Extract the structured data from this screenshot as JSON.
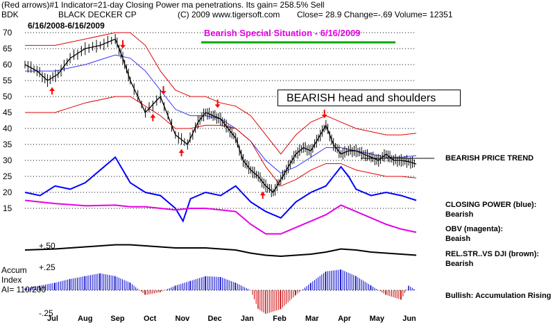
{
  "header": {
    "line1": "(Red arrows)#1 Indicator=21-day Closing Power ma penetrations. Its gain= 258.5% Sell",
    "ticker": "BDK",
    "company": "BLACK DECKER CP",
    "copyright": "(C) 2009 www.tigersoft.com",
    "close": "Close=  28.9  Change=-.69 Volume= 12351",
    "date_range": "6/16/2008-6/16/2009"
  },
  "annotations": {
    "special": "Bearish Special Situation - 6/16/2009",
    "head_shoulders": "BEARISH head and shoulders",
    "trend": "BEARISH PRICE TREND",
    "cp_title": "CLOSING POWER (blue):",
    "cp_value": "Bearish",
    "obv_title": "OBV (magenta):",
    "obv_value": "Beaish",
    "rs_title": "REL.STR..VS DJI (brown):",
    "rs_value": "Bearish",
    "accum_note": "Bullish: Accumulation Rising",
    "accum_l1": "Accum",
    "accum_l2": "Index",
    "accum_l3": "AI= 110/200"
  },
  "colors": {
    "price": "#000000",
    "bands": "#e00000",
    "closing_power": "#0000ff",
    "obv": "#e600e6",
    "rel_strength": "#000000",
    "accum_pos": "#0000cc",
    "accum_neg": "#cc0000",
    "special_underline": "#00aa00",
    "arrow": "#ff0000"
  },
  "chart_data": {
    "type": "line",
    "months": [
      "Jul",
      "Aug",
      "Sep",
      "Oct",
      "Nov",
      "Dec",
      "Jan",
      "Feb",
      "Mar",
      "Apr",
      "May",
      "Jun"
    ],
    "price_axis": {
      "ticks": [
        70,
        65,
        60,
        55,
        50,
        45,
        40,
        35,
        30,
        25,
        20,
        15
      ],
      "ylim": [
        12,
        72
      ]
    },
    "rs_scale_label": "+.50",
    "accum_axis": {
      "top_label": "+.25",
      "bottom_label": "-.25",
      "ylim": [
        -0.25,
        0.25
      ]
    },
    "x_range": [
      0,
      260
    ],
    "price_close": {
      "x": [
        0,
        8,
        15,
        22,
        30,
        40,
        50,
        60,
        65,
        70,
        80,
        90,
        100,
        108,
        115,
        120,
        125,
        130,
        135,
        140,
        145,
        150,
        155,
        160,
        165,
        170,
        175,
        180,
        185,
        190,
        195,
        200,
        205,
        210,
        215,
        220,
        225,
        230,
        235,
        240,
        245,
        250,
        255,
        260
      ],
      "y": [
        60,
        58,
        55,
        57,
        62,
        65,
        66,
        68,
        62,
        55,
        45,
        50,
        38,
        35,
        42,
        45,
        44,
        43,
        40,
        37,
        30,
        27,
        25,
        22,
        20,
        24,
        28,
        32,
        34,
        33,
        37,
        41,
        35,
        32,
        33,
        33,
        32,
        31,
        30,
        32,
        30,
        30,
        29.6,
        28.9
      ]
    },
    "upper_band": {
      "x": [
        0,
        20,
        40,
        60,
        70,
        80,
        90,
        100,
        110,
        120,
        130,
        140,
        150,
        160,
        170,
        180,
        190,
        200,
        210,
        220,
        230,
        240,
        250,
        260
      ],
      "y": [
        66,
        66,
        68,
        70,
        70,
        66,
        58,
        52,
        50,
        50,
        48,
        47,
        44,
        38,
        32,
        38,
        42,
        44,
        42,
        40,
        39,
        38,
        38,
        38.5
      ]
    },
    "middle_ma": {
      "x": [
        0,
        20,
        40,
        60,
        70,
        80,
        90,
        100,
        110,
        120,
        130,
        140,
        150,
        160,
        170,
        180,
        190,
        200,
        210,
        220,
        230,
        240,
        250,
        260
      ],
      "y": [
        58,
        58,
        60,
        63,
        62,
        58,
        52,
        46,
        44,
        44,
        43,
        40,
        36,
        30,
        26,
        28,
        31,
        34,
        34,
        33,
        32,
        31,
        31,
        31.5
      ]
    },
    "lower_band": {
      "x": [
        0,
        20,
        40,
        60,
        70,
        80,
        90,
        100,
        110,
        120,
        130,
        140,
        150,
        160,
        170,
        180,
        190,
        200,
        210,
        220,
        230,
        240,
        250,
        260
      ],
      "y": [
        45,
        45,
        48,
        50,
        50,
        47,
        44,
        40,
        40,
        41,
        41,
        40,
        36,
        28,
        22,
        24,
        27,
        29,
        29,
        27,
        26,
        25,
        25,
        24.5
      ]
    },
    "series": [
      {
        "name": "CLOSING POWER (blue):",
        "x": [
          0,
          10,
          20,
          30,
          40,
          50,
          60,
          65,
          70,
          80,
          90,
          100,
          105,
          110,
          120,
          130,
          140,
          150,
          160,
          170,
          180,
          190,
          200,
          210,
          215,
          220,
          230,
          240,
          250,
          260
        ],
        "y": [
          20,
          19,
          22,
          21,
          23,
          27,
          31,
          27,
          23,
          20,
          19,
          15,
          11,
          18,
          20,
          19,
          22,
          17,
          14,
          12,
          17,
          20,
          22,
          28,
          25,
          21,
          19,
          20,
          19,
          17.5
        ]
      },
      {
        "name": "OBV (magenta):",
        "x": [
          0,
          20,
          40,
          60,
          70,
          80,
          90,
          100,
          110,
          120,
          130,
          140,
          150,
          160,
          170,
          180,
          190,
          200,
          210,
          220,
          230,
          240,
          250,
          260
        ],
        "y": [
          17.5,
          16.5,
          15.8,
          16,
          15.5,
          15.5,
          15,
          14.5,
          15,
          15,
          14.5,
          14,
          10,
          7,
          7,
          9,
          11,
          13,
          16,
          14,
          12,
          10,
          8.5,
          7.5
        ]
      },
      {
        "name": "REL.STR..VS DJI (brown):",
        "x": [
          0,
          20,
          40,
          60,
          70,
          80,
          90,
          100,
          110,
          120,
          130,
          140,
          150,
          160,
          170,
          180,
          190,
          200,
          210,
          220,
          230,
          240,
          250,
          260
        ],
        "y": [
          4,
          4.5,
          5.5,
          6.5,
          6.5,
          6,
          5.5,
          5,
          5,
          5,
          4.5,
          4,
          2.5,
          1.5,
          1,
          1.5,
          2,
          3,
          4.5,
          4,
          3,
          2.5,
          2,
          1.5
        ]
      }
    ],
    "accum_index": {
      "x": [
        0,
        10,
        20,
        30,
        40,
        50,
        60,
        70,
        80,
        90,
        100,
        110,
        120,
        130,
        140,
        150,
        155,
        160,
        170,
        180,
        190,
        200,
        210,
        220,
        230,
        240,
        250,
        255,
        260
      ],
      "y": [
        0.02,
        0.05,
        0.08,
        0.12,
        0.15,
        0.18,
        0.15,
        0.08,
        -0.05,
        -0.02,
        0.05,
        0.1,
        0.15,
        0.14,
        0.08,
        0.0,
        -0.2,
        -0.25,
        -0.2,
        -0.05,
        0.08,
        0.2,
        0.22,
        0.15,
        0.05,
        -0.05,
        -0.1,
        0.05,
        0.0
      ]
    },
    "sell_arrows_x": [
      65,
      92,
      128,
      199
    ],
    "buy_arrows_x": [
      18,
      85,
      104,
      158
    ]
  }
}
